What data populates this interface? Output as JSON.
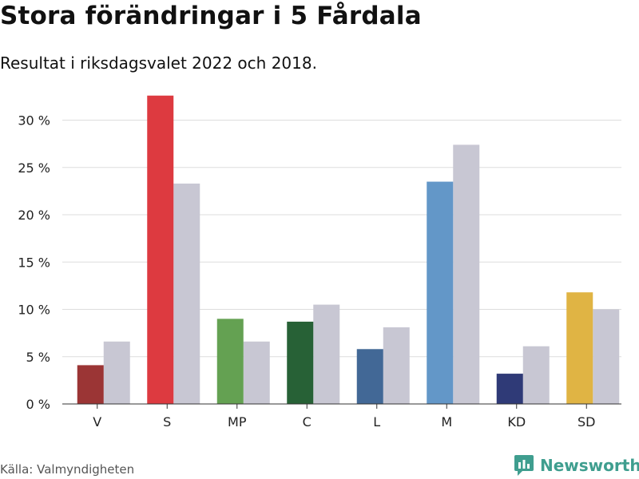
{
  "title": "Stora förändringar i 5 Fårdala",
  "subtitle": "Resultat i riksdagsvalet 2022 och 2018.",
  "source": "Källa: Valmyndigheten",
  "brand": {
    "name": "Newsworthy",
    "color": "#3f9e8f",
    "icon": "newsworthy-logo-icon"
  },
  "chart_data": {
    "type": "bar",
    "categories": [
      "V",
      "S",
      "MP",
      "C",
      "L",
      "M",
      "KD",
      "SD"
    ],
    "series": [
      {
        "values": [
          4.1,
          32.6,
          9.0,
          8.7,
          5.8,
          23.5,
          3.2,
          11.8
        ]
      },
      {
        "values": [
          6.6,
          23.3,
          6.6,
          10.5,
          8.1,
          27.4,
          6.1,
          10.0
        ]
      }
    ],
    "colors_2022": [
      "#9b3535",
      "#dd3a40",
      "#64a152",
      "#276136",
      "#426896",
      "#6397c8",
      "#2f3a77",
      "#e0b444"
    ],
    "color_2018": "#c8c7d3",
    "yticks": [
      0,
      5,
      10,
      15,
      20,
      25,
      30
    ],
    "ytick_labels": [
      "0 %",
      "5 %",
      "10 %",
      "15 %",
      "20 %",
      "25 %",
      "30 %"
    ],
    "ylim": [
      0,
      33
    ],
    "grid": true,
    "xlabel": "",
    "ylabel": ""
  }
}
